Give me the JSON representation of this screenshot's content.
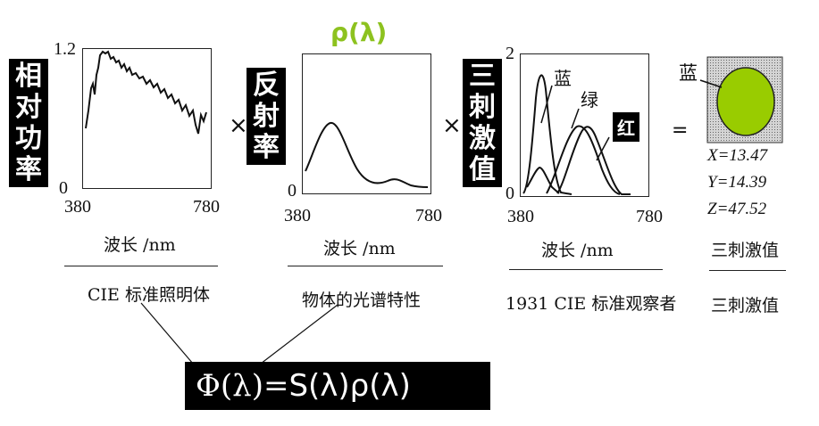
{
  "panel1": {
    "label": [
      "相",
      "对",
      "功",
      "率"
    ],
    "y_max": "1.2",
    "y_min": "0",
    "x_min": "380",
    "x_max": "780",
    "xlabel": "波长 /nm",
    "caption": "CIE 标准照明体"
  },
  "panel2": {
    "top_label": "ρ(λ)",
    "top_label_color": "#8dc21f",
    "label": [
      "反",
      "射",
      "率"
    ],
    "y_min": "0",
    "x_min": "380",
    "x_max": "780",
    "xlabel": "波长 /nm",
    "caption": "物体的光谱特性"
  },
  "panel3": {
    "label": [
      "三",
      "刺",
      "激",
      "值"
    ],
    "y_max": "2",
    "y_min": "0",
    "x_min": "380",
    "x_max": "780",
    "xlabel": "波长 /nm",
    "caption": "1931 CIE 标准观察者",
    "curve_blue": "蓝",
    "curve_green": "绿",
    "curve_red": "红"
  },
  "result": {
    "swatch_label": "蓝",
    "swatch_color": "#99cc00",
    "X": "X=13.47",
    "Y": "Y=14.39",
    "Z": "Z=47.52",
    "caption1": "三刺激值",
    "caption2": "三刺激值"
  },
  "operators": {
    "times1": "×",
    "times2": "×",
    "equals": "="
  },
  "formula": {
    "phi": "Φ(λ)=",
    "rest": "S(λ)ρ(λ)"
  }
}
